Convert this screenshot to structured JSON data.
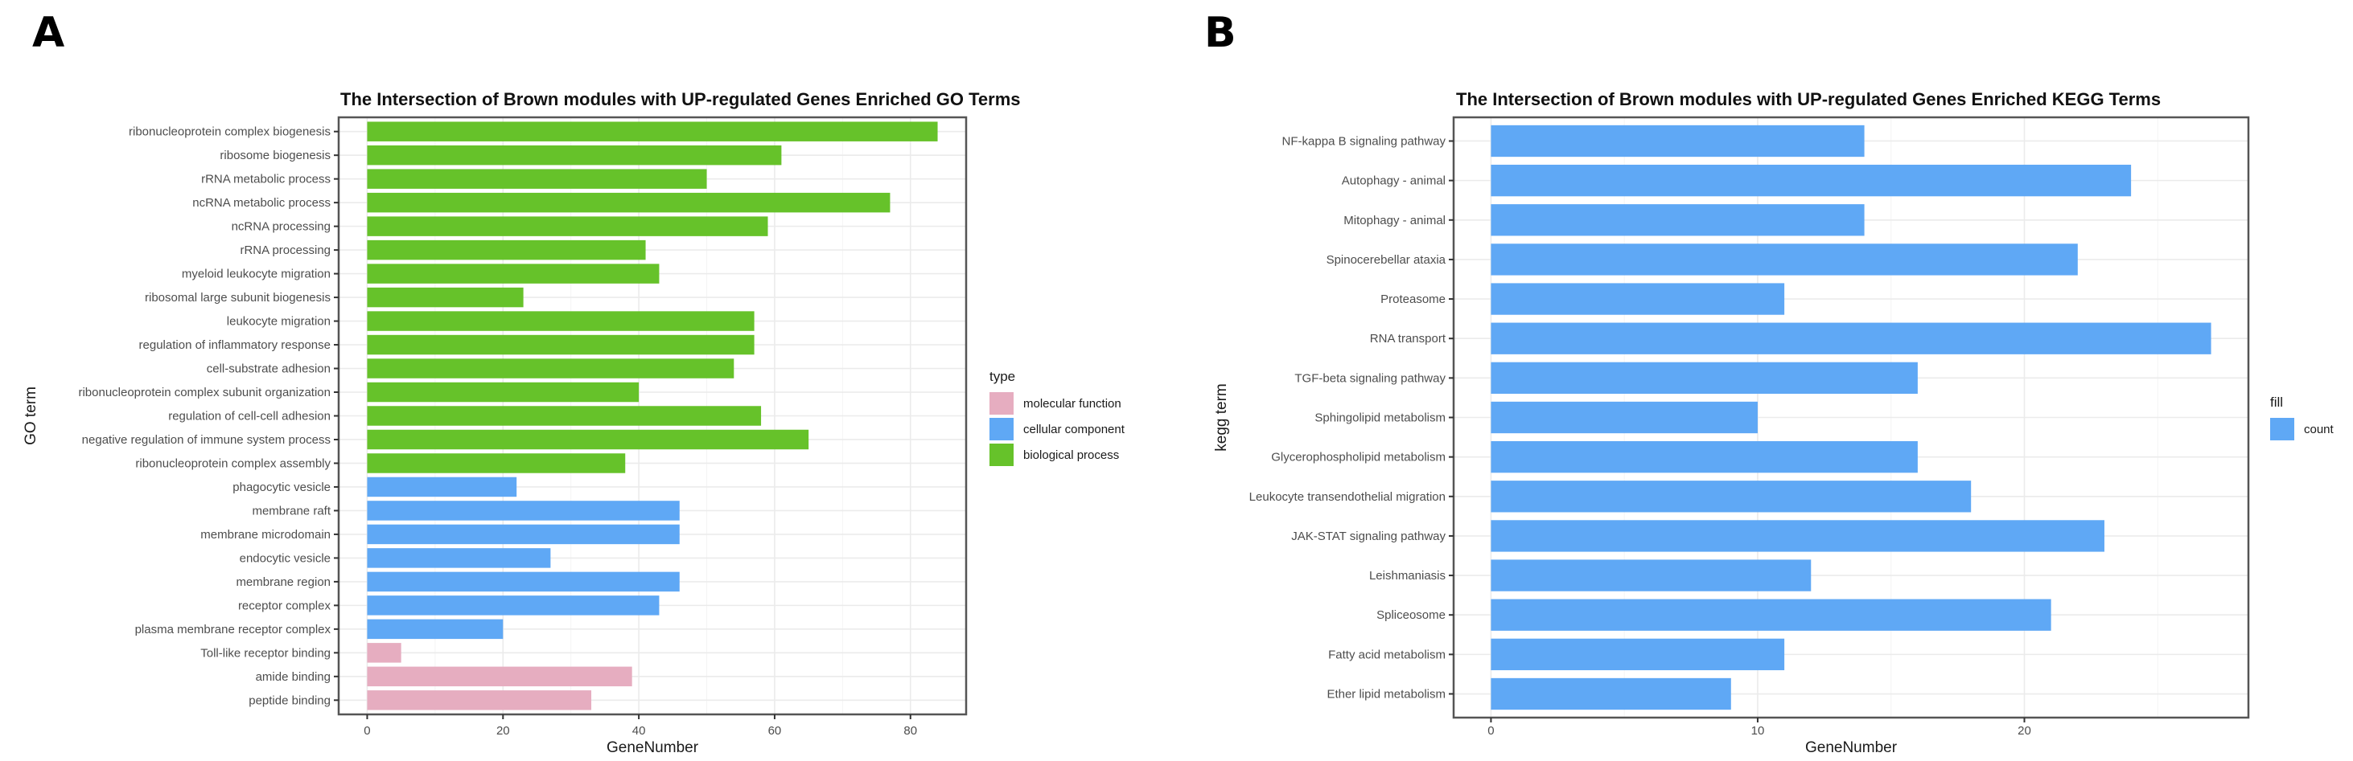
{
  "figure": {
    "panel_labels": [
      "A",
      "B"
    ]
  },
  "chart_data": [
    {
      "id": "A",
      "type": "bar",
      "orientation": "horizontal",
      "title": "The Intersection of Brown modules with UP-regulated Genes Enriched GO Terms",
      "xlabel": "GeneNumber",
      "ylabel": "GO term",
      "xlim": [
        -4.2,
        88.2
      ],
      "xticks": [
        0,
        20,
        40,
        60,
        80
      ],
      "xtick_labels": [
        "0",
        "20",
        "40",
        "60",
        "80"
      ],
      "grid": true,
      "legend": {
        "title": "type",
        "placement": "right",
        "entries": [
          {
            "label": "molecular function",
            "color": "#e6adc0"
          },
          {
            "label": "cellular component",
            "color": "#5fa8f5"
          },
          {
            "label": "biological process",
            "color": "#66c22a"
          }
        ]
      },
      "categories": [
        "ribonucleoprotein complex biogenesis",
        "ribosome biogenesis",
        "rRNA metabolic process",
        "ncRNA metabolic process",
        "ncRNA processing",
        "rRNA processing",
        "myeloid leukocyte migration",
        "ribosomal large subunit biogenesis",
        "leukocyte migration",
        "regulation of inflammatory response",
        "cell-substrate adhesion",
        "ribonucleoprotein complex subunit organization",
        "regulation of cell-cell adhesion",
        "negative regulation of immune system process",
        "ribonucleoprotein complex assembly",
        "phagocytic vesicle",
        "membrane raft",
        "membrane microdomain",
        "endocytic vesicle",
        "membrane region",
        "receptor complex",
        "plasma membrane receptor complex",
        "Toll-like receptor binding",
        "amide binding",
        "peptide binding"
      ],
      "values": [
        84,
        61,
        50,
        77,
        59,
        41,
        43,
        23,
        57,
        57,
        54,
        40,
        58,
        65,
        38,
        22,
        46,
        46,
        27,
        46,
        43,
        20,
        5,
        39,
        33
      ],
      "types": [
        "biological process",
        "biological process",
        "biological process",
        "biological process",
        "biological process",
        "biological process",
        "biological process",
        "biological process",
        "biological process",
        "biological process",
        "biological process",
        "biological process",
        "biological process",
        "biological process",
        "biological process",
        "cellular component",
        "cellular component",
        "cellular component",
        "cellular component",
        "cellular component",
        "cellular component",
        "cellular component",
        "molecular function",
        "molecular function",
        "molecular function"
      ]
    },
    {
      "id": "B",
      "type": "bar",
      "orientation": "horizontal",
      "title": "The Intersection of Brown modules with UP-regulated Genes Enriched KEGG Terms",
      "xlabel": "GeneNumber",
      "ylabel": "kegg term",
      "xlim": [
        -1.4,
        28.4
      ],
      "xticks": [
        0,
        10,
        20
      ],
      "xtick_labels": [
        "0",
        "10",
        "20"
      ],
      "grid": true,
      "legend": {
        "title": "fill",
        "placement": "right",
        "entries": [
          {
            "label": "count",
            "color": "#5fa8f5"
          }
        ]
      },
      "categories": [
        "NF-kappa B signaling pathway",
        "Autophagy - animal",
        "Mitophagy - animal",
        "Spinocerebellar ataxia",
        "Proteasome",
        "RNA transport",
        "TGF-beta signaling pathway",
        "Sphingolipid metabolism",
        "Glycerophospholipid metabolism",
        "Leukocyte transendothelial migration",
        "JAK-STAT signaling pathway",
        "Leishmaniasis",
        "Spliceosome",
        "Fatty acid metabolism",
        "Ether lipid metabolism"
      ],
      "values": [
        14,
        24,
        14,
        22,
        11,
        27,
        16,
        10,
        16,
        18,
        23,
        12,
        21,
        11,
        9
      ],
      "bar_color": "#5fa8f5"
    }
  ]
}
